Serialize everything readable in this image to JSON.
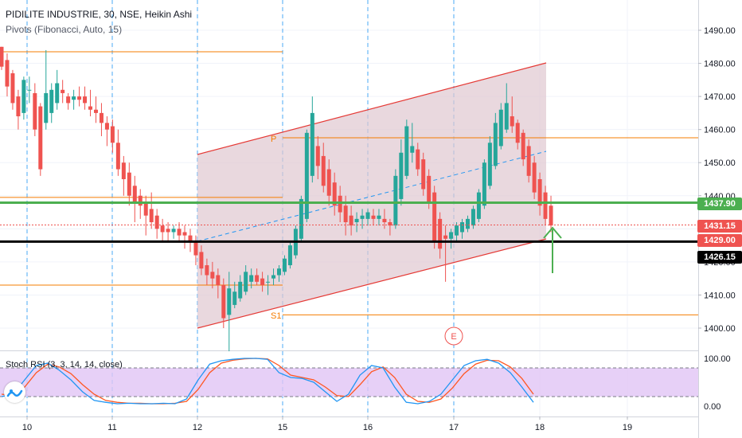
{
  "header": {
    "symbol_line": "PIDILITE INDUSTRIE, 30, NSE, Heikin Ashi",
    "indicator_line": "Pivots (Fibonacci, Auto, 15)"
  },
  "oscillator": {
    "label": "Stoch RSI (3, 3, 14, 14, close)",
    "ticks": [
      "100.00",
      "0.00"
    ]
  },
  "price_boxes": [
    {
      "label": "1437.90",
      "color": "#4caf50"
    },
    {
      "label": "1431.15",
      "color": "#ef5350"
    },
    {
      "label": "1429.00",
      "color": "#ef5350"
    },
    {
      "label": "1426.15",
      "color": "#000000"
    }
  ],
  "pivot_labels": {
    "p": "P",
    "s1": "S1"
  },
  "event_marker": "E",
  "colors": {
    "up": "#26a69a",
    "down": "#ef5350",
    "pivot": "#f57c00",
    "channel": "#e53935",
    "channel_fill": "#e0c8d0",
    "support": "#000000",
    "resistance": "#4caf50",
    "stoch_k": "#2196f3",
    "stoch_d": "#ff5722",
    "stoch_band": "#e1c4f5"
  },
  "chart_data": {
    "type": "candlestick",
    "title": "PIDILITE INDUSTRIE, 30, NSE, Heikin Ashi",
    "x_ticks": [
      "10",
      "11",
      "12",
      "15",
      "16",
      "17",
      "18",
      "19"
    ],
    "y_ticks": [
      1400,
      1410,
      1420,
      1430,
      1440,
      1450,
      1460,
      1470,
      1480,
      1490
    ],
    "y_tick_labels": [
      "1400.00",
      "1410.00",
      "1420.00",
      "1430.00",
      "1440.00",
      "1450.00",
      "1460.00",
      "1470.00",
      "1480.00",
      "1490.00"
    ],
    "ylim": [
      1393,
      1497
    ],
    "candles_ohlc": [
      [
        1485,
        1485,
        1478,
        1479
      ],
      [
        1481,
        1483,
        1470,
        1473
      ],
      [
        1477,
        1478,
        1466,
        1468
      ],
      [
        1470,
        1472,
        1460,
        1464
      ],
      [
        1465,
        1476,
        1463,
        1475
      ],
      [
        1472,
        1476,
        1468,
        1472
      ],
      [
        1471,
        1474,
        1458,
        1460
      ],
      [
        1467,
        1468,
        1446,
        1448
      ],
      [
        1462,
        1484,
        1460,
        1471
      ],
      [
        1465,
        1474,
        1462,
        1472
      ],
      [
        1468,
        1478,
        1466,
        1474
      ],
      [
        1472,
        1475,
        1468,
        1471
      ],
      [
        1470,
        1471,
        1466,
        1468
      ],
      [
        1469,
        1472,
        1466,
        1470
      ],
      [
        1470,
        1473,
        1467,
        1469
      ],
      [
        1470,
        1473,
        1466,
        1468
      ],
      [
        1467,
        1472,
        1464,
        1466
      ],
      [
        1466,
        1470,
        1462,
        1465
      ],
      [
        1465,
        1468,
        1458,
        1462
      ],
      [
        1462,
        1464,
        1455,
        1460
      ],
      [
        1461,
        1463,
        1453,
        1456
      ],
      [
        1456,
        1460,
        1446,
        1448
      ],
      [
        1450,
        1452,
        1440,
        1445
      ],
      [
        1447,
        1450,
        1437,
        1440
      ],
      [
        1443,
        1446,
        1432,
        1438
      ],
      [
        1440,
        1442,
        1433,
        1437
      ],
      [
        1438,
        1440,
        1428,
        1434
      ],
      [
        1436,
        1441,
        1430,
        1432
      ],
      [
        1434,
        1436,
        1427,
        1430
      ],
      [
        1431,
        1433,
        1426,
        1429
      ],
      [
        1430,
        1432,
        1426,
        1429
      ],
      [
        1429,
        1431,
        1427,
        1430
      ],
      [
        1430,
        1432,
        1426,
        1428
      ],
      [
        1429,
        1431,
        1424,
        1428
      ],
      [
        1428,
        1430,
        1423,
        1426
      ],
      [
        1426,
        1428,
        1419,
        1422
      ],
      [
        1423,
        1425,
        1416,
        1418
      ],
      [
        1419,
        1421,
        1413,
        1416
      ],
      [
        1417,
        1420,
        1412,
        1415
      ],
      [
        1416,
        1418,
        1409,
        1413
      ],
      [
        1413,
        1415,
        1400,
        1403
      ],
      [
        1404,
        1417,
        1393,
        1412
      ],
      [
        1407,
        1414,
        1406,
        1411
      ],
      [
        1409,
        1416,
        1408,
        1414
      ],
      [
        1411,
        1419,
        1410,
        1417
      ],
      [
        1414,
        1418,
        1412,
        1416
      ],
      [
        1416,
        1418,
        1413,
        1414
      ],
      [
        1415,
        1417,
        1411,
        1413
      ],
      [
        1414,
        1416,
        1410,
        1414
      ],
      [
        1415,
        1418,
        1413,
        1416
      ],
      [
        1416,
        1419,
        1414,
        1418
      ],
      [
        1417,
        1422,
        1416,
        1421
      ],
      [
        1419,
        1426,
        1418,
        1425
      ],
      [
        1422,
        1431,
        1421,
        1430
      ],
      [
        1427,
        1440,
        1426,
        1439
      ],
      [
        1433,
        1460,
        1432,
        1459
      ],
      [
        1446,
        1470,
        1444,
        1465
      ],
      [
        1455,
        1458,
        1445,
        1449
      ],
      [
        1452,
        1456,
        1441,
        1443
      ],
      [
        1448,
        1451,
        1437,
        1440
      ],
      [
        1444,
        1447,
        1434,
        1437
      ],
      [
        1440,
        1443,
        1432,
        1435
      ],
      [
        1437,
        1440,
        1428,
        1432
      ],
      [
        1434,
        1437,
        1428,
        1431
      ],
      [
        1432,
        1435,
        1429,
        1433
      ],
      [
        1433,
        1436,
        1430,
        1434
      ],
      [
        1433,
        1436,
        1431,
        1435
      ],
      [
        1434,
        1436,
        1431,
        1433
      ],
      [
        1433,
        1436,
        1431,
        1434
      ],
      [
        1433,
        1436,
        1430,
        1432
      ],
      [
        1432,
        1433,
        1428,
        1431
      ],
      [
        1431,
        1448,
        1430,
        1446
      ],
      [
        1439,
        1457,
        1437,
        1453
      ],
      [
        1446,
        1463,
        1445,
        1461
      ],
      [
        1453,
        1462,
        1450,
        1455
      ],
      [
        1454,
        1456,
        1446,
        1448
      ],
      [
        1451,
        1453,
        1440,
        1442
      ],
      [
        1446,
        1448,
        1436,
        1438
      ],
      [
        1441,
        1443,
        1424,
        1426
      ],
      [
        1433,
        1435,
        1421,
        1424
      ],
      [
        1428,
        1431,
        1414,
        1427
      ],
      [
        1427,
        1430,
        1424,
        1429
      ],
      [
        1428,
        1432,
        1426,
        1431
      ],
      [
        1429,
        1433,
        1427,
        1432
      ],
      [
        1430,
        1434,
        1429,
        1433
      ],
      [
        1431,
        1437,
        1430,
        1436
      ],
      [
        1433,
        1442,
        1432,
        1441
      ],
      [
        1437,
        1451,
        1436,
        1450
      ],
      [
        1443,
        1458,
        1442,
        1456
      ],
      [
        1449,
        1465,
        1448,
        1462
      ],
      [
        1455,
        1468,
        1454,
        1466
      ],
      [
        1460,
        1474,
        1459,
        1468
      ],
      [
        1464,
        1470,
        1459,
        1461
      ],
      [
        1462,
        1463,
        1454,
        1456
      ],
      [
        1459,
        1460,
        1449,
        1451
      ],
      [
        1455,
        1457,
        1444,
        1446
      ],
      [
        1450,
        1452,
        1439,
        1441
      ],
      [
        1445,
        1447,
        1434,
        1437
      ],
      [
        1441,
        1443,
        1431,
        1433
      ],
      [
        1437,
        1440,
        1429,
        1431
      ]
    ],
    "pivot_levels": [
      {
        "label": "P",
        "value": 1457.5
      },
      {
        "label": "S1",
        "value": 1404.0
      },
      {
        "label": "",
        "value": 1483.5
      },
      {
        "label": "",
        "value": 1413.0
      },
      {
        "label": "",
        "value": 1439.5
      }
    ],
    "horizontal_lines": [
      {
        "value": 1437.9,
        "role": "resistance"
      },
      {
        "value": 1426.15,
        "role": "support"
      },
      {
        "value": 1431.15,
        "role": "last"
      }
    ],
    "stoch_rsi": {
      "ylim": [
        0,
        100
      ],
      "k": [
        20,
        25,
        55,
        85,
        90,
        75,
        55,
        30,
        12,
        8,
        5,
        6,
        5,
        5,
        6,
        5,
        15,
        55,
        88,
        95,
        98,
        100,
        100,
        98,
        70,
        60,
        58,
        50,
        30,
        10,
        25,
        65,
        85,
        80,
        40,
        8,
        5,
        10,
        25,
        55,
        85,
        95,
        98,
        90,
        70,
        40,
        8
      ],
      "d": [
        25,
        22,
        40,
        70,
        88,
        82,
        68,
        45,
        25,
        12,
        8,
        6,
        6,
        5,
        5,
        6,
        10,
        35,
        70,
        90,
        96,
        99,
        100,
        99,
        85,
        65,
        60,
        55,
        40,
        22,
        20,
        45,
        72,
        82,
        60,
        25,
        10,
        8,
        15,
        38,
        68,
        88,
        96,
        95,
        82,
        58,
        25
      ]
    }
  }
}
